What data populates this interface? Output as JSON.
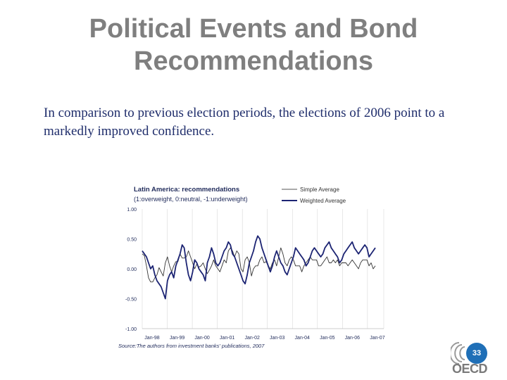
{
  "slide": {
    "title_line1": "Political Events and Bond",
    "title_line2": "Recommendations",
    "subtitle": "In comparison to previous election periods, the elections of 2006 point to a markedly improved confidence.",
    "page_number": "33",
    "logo_text": "OECD"
  },
  "chart_data": {
    "type": "line",
    "title": "Latin America: recommendations",
    "subtitle": "(1:overweight, 0:neutral, -1:underweight)",
    "source": "Source:The authors from investment banks' publications, 2007",
    "xlabel": "",
    "ylabel": "",
    "ylim": [
      -1,
      1
    ],
    "yticks": [
      "1.00",
      "0.50",
      "0.00",
      "-0.50",
      "-1.00"
    ],
    "xticks": [
      "Jan-98",
      "Jan-99",
      "Jan-00",
      "Jan-01",
      "Jan-02",
      "Jan-03",
      "Jan-04",
      "Jan-05",
      "Jan-06",
      "Jan-07"
    ],
    "legend_position": "top-right",
    "series": [
      {
        "name": "Simple Average",
        "color": "#333333",
        "values": [
          0.25,
          0.22,
          0.05,
          -0.15,
          -0.22,
          -0.22,
          -0.15,
          -0.1,
          0.02,
          -0.05,
          -0.12,
          0.1,
          0.2,
          0.05,
          -0.05,
          0.05,
          0.12,
          0.12,
          0.25,
          0.18,
          0.18,
          0.2,
          0.3,
          0.2,
          0.1,
          0.0,
          0.08,
          0.03,
          0.05,
          0.1,
          0.0,
          -0.08,
          -0.02,
          0.05,
          0.15,
          0.05,
          0.0,
          -0.05,
          0.05,
          0.15,
          0.1,
          0.3,
          0.35,
          0.3,
          0.2,
          0.3,
          0.25,
          0.0,
          -0.05,
          0.15,
          0.2,
          0.1,
          -0.12,
          0.0,
          0.05,
          0.05,
          0.15,
          0.2,
          0.1,
          0.12,
          0.05,
          0.0,
          0.1,
          0.15,
          0.05,
          0.2,
          0.35,
          0.25,
          0.1,
          0.05,
          0.15,
          0.2,
          0.15,
          0.05,
          0.05,
          0.05,
          -0.05,
          0.05,
          0.1,
          0.15,
          0.2,
          0.15,
          0.15,
          0.15,
          0.05,
          0.05,
          0.1,
          0.15,
          0.2,
          0.1,
          0.1,
          0.15,
          0.1,
          0.15,
          0.05,
          0.1,
          0.1,
          0.1,
          0.05,
          0.1,
          0.15,
          0.1,
          0.05,
          0.0,
          0.1,
          0.15,
          0.15,
          0.15,
          0.05,
          0.1,
          0.0,
          0.05
        ]
      },
      {
        "name": "Weighted Average",
        "color": "#1c2473",
        "values": [
          0.3,
          0.25,
          0.2,
          0.1,
          0.0,
          0.05,
          -0.1,
          -0.2,
          -0.25,
          -0.3,
          -0.4,
          -0.5,
          -0.2,
          -0.1,
          -0.05,
          -0.15,
          0.05,
          0.15,
          0.25,
          0.4,
          0.35,
          0.1,
          -0.1,
          -0.2,
          -0.05,
          0.15,
          0.1,
          0.0,
          -0.05,
          -0.1,
          -0.2,
          0.1,
          0.2,
          0.35,
          0.25,
          0.1,
          0.05,
          0.1,
          0.2,
          0.3,
          0.35,
          0.45,
          0.4,
          0.25,
          0.2,
          0.1,
          0.0,
          -0.1,
          -0.2,
          -0.25,
          -0.1,
          0.1,
          0.2,
          0.3,
          0.45,
          0.55,
          0.5,
          0.35,
          0.25,
          0.15,
          0.05,
          -0.05,
          0.05,
          0.2,
          0.3,
          0.2,
          0.1,
          0.05,
          -0.05,
          -0.1,
          0.0,
          0.1,
          0.2,
          0.35,
          0.3,
          0.25,
          0.2,
          0.15,
          0.05,
          0.1,
          0.2,
          0.3,
          0.35,
          0.3,
          0.25,
          0.2,
          0.25,
          0.35,
          0.4,
          0.45,
          0.35,
          0.3,
          0.25,
          0.2,
          0.1,
          0.15,
          0.25,
          0.3,
          0.35,
          0.4,
          0.45,
          0.35,
          0.3,
          0.25,
          0.3,
          0.35,
          0.4,
          0.35,
          0.2,
          0.25,
          0.3,
          0.35
        ]
      }
    ]
  }
}
